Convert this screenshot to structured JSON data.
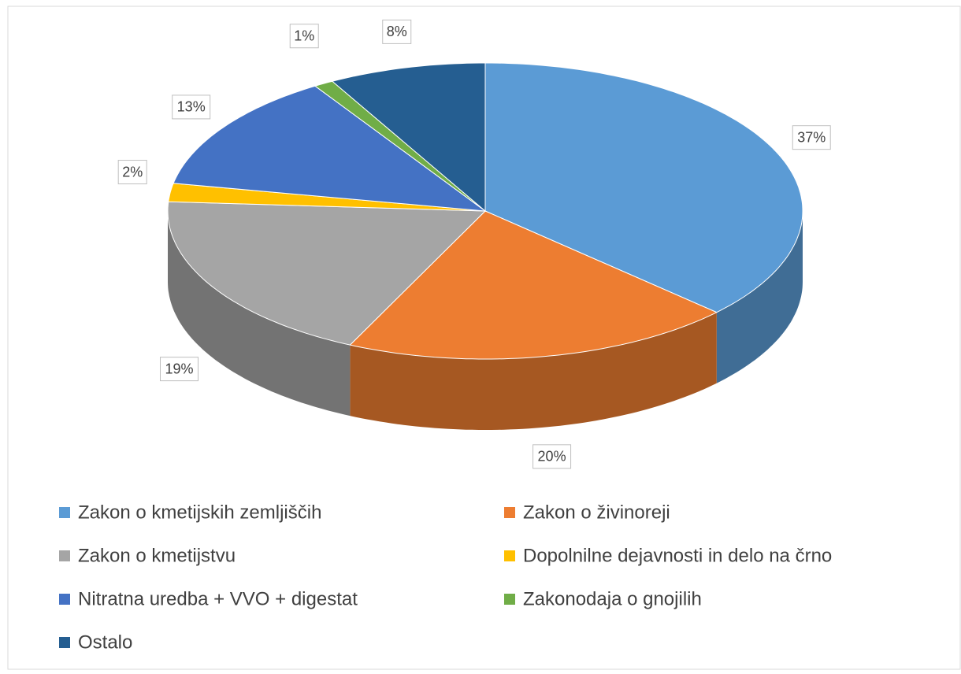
{
  "chart_data": {
    "type": "pie3d",
    "categories": [
      "Zakon o kmetijskih zemljiščih",
      "Zakon o živinoreji",
      "Zakon o kmetijstvu",
      "Dopolnilne dejavnosti in delo na črno",
      "Nitratna uredba + VVO + digestat",
      "Zakonodaja o gnojilih",
      "Ostalo"
    ],
    "values": [
      37,
      20,
      19,
      2,
      13,
      1,
      8
    ],
    "value_labels": [
      "37%",
      "20%",
      "19%",
      "2%",
      "13%",
      "1%",
      "8%"
    ],
    "colors": [
      "#5b9bd5",
      "#ed7d31",
      "#a5a5a5",
      "#ffc000",
      "#4472c4",
      "#70ad47",
      "#255e91"
    ],
    "legend": "bottom"
  }
}
